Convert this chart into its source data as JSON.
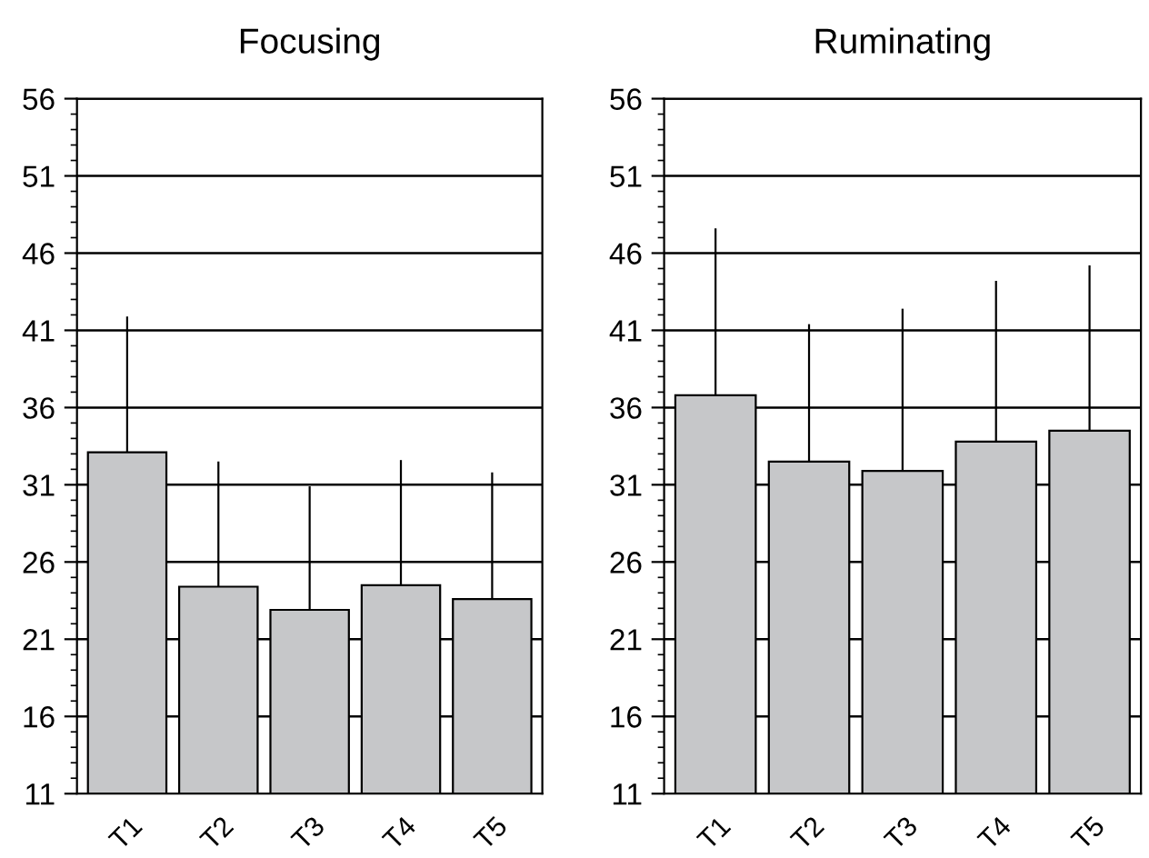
{
  "chart_data": [
    {
      "type": "bar",
      "title": "Focusing",
      "categories": [
        "T1",
        "T2",
        "T3",
        "T4",
        "T5"
      ],
      "values": [
        33.1,
        24.4,
        22.9,
        24.5,
        23.6
      ],
      "errors": [
        [
          33.1,
          41.9
        ],
        [
          24.4,
          32.5
        ],
        [
          22.9,
          30.9
        ],
        [
          24.5,
          32.6
        ],
        [
          23.6,
          31.8
        ]
      ],
      "color": "#c6c7c9",
      "ylim": [
        11,
        56
      ],
      "yticks": [
        11,
        16,
        21,
        26,
        31,
        36,
        41,
        46,
        51,
        56
      ],
      "grid": "y"
    },
    {
      "type": "bar",
      "title": "Ruminating",
      "categories": [
        "T1",
        "T2",
        "T3",
        "T4",
        "T5"
      ],
      "values": [
        36.8,
        32.5,
        31.9,
        33.8,
        34.5
      ],
      "errors": [
        [
          36.8,
          47.6
        ],
        [
          32.5,
          41.4
        ],
        [
          31.9,
          42.4
        ],
        [
          33.8,
          44.2
        ],
        [
          34.5,
          45.2
        ]
      ],
      "color": "#c6c7c9",
      "ylim": [
        11,
        56
      ],
      "yticks": [
        11,
        16,
        21,
        26,
        31,
        36,
        41,
        46,
        51,
        56
      ],
      "grid": "y"
    }
  ]
}
